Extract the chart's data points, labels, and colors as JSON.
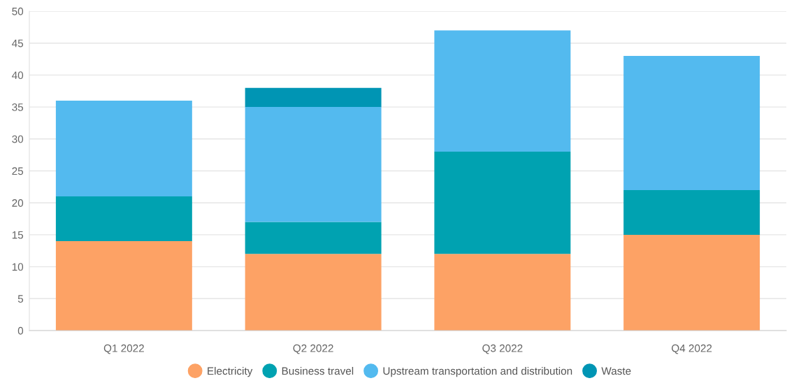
{
  "chart_data": {
    "type": "bar",
    "stacked": true,
    "categories": [
      "Q1 2022",
      "Q2 2022",
      "Q3 2022",
      "Q4 2022"
    ],
    "series": [
      {
        "name": "Electricity",
        "color": "#fda265",
        "values": [
          14,
          12,
          12,
          15
        ]
      },
      {
        "name": "Business travel",
        "color": "#00a2b1",
        "values": [
          7,
          5,
          16,
          7
        ]
      },
      {
        "name": "Upstream transportation and distribution",
        "color": "#53baef",
        "values": [
          15,
          18,
          19,
          21
        ]
      },
      {
        "name": "Waste",
        "color": "#0095b4",
        "values": [
          null,
          3,
          null,
          null
        ]
      }
    ],
    "ylim": [
      0,
      50
    ],
    "yticks": [
      0,
      5,
      10,
      15,
      20,
      25,
      30,
      35,
      40,
      45,
      50
    ],
    "grid": "y",
    "legend": "bottom"
  }
}
